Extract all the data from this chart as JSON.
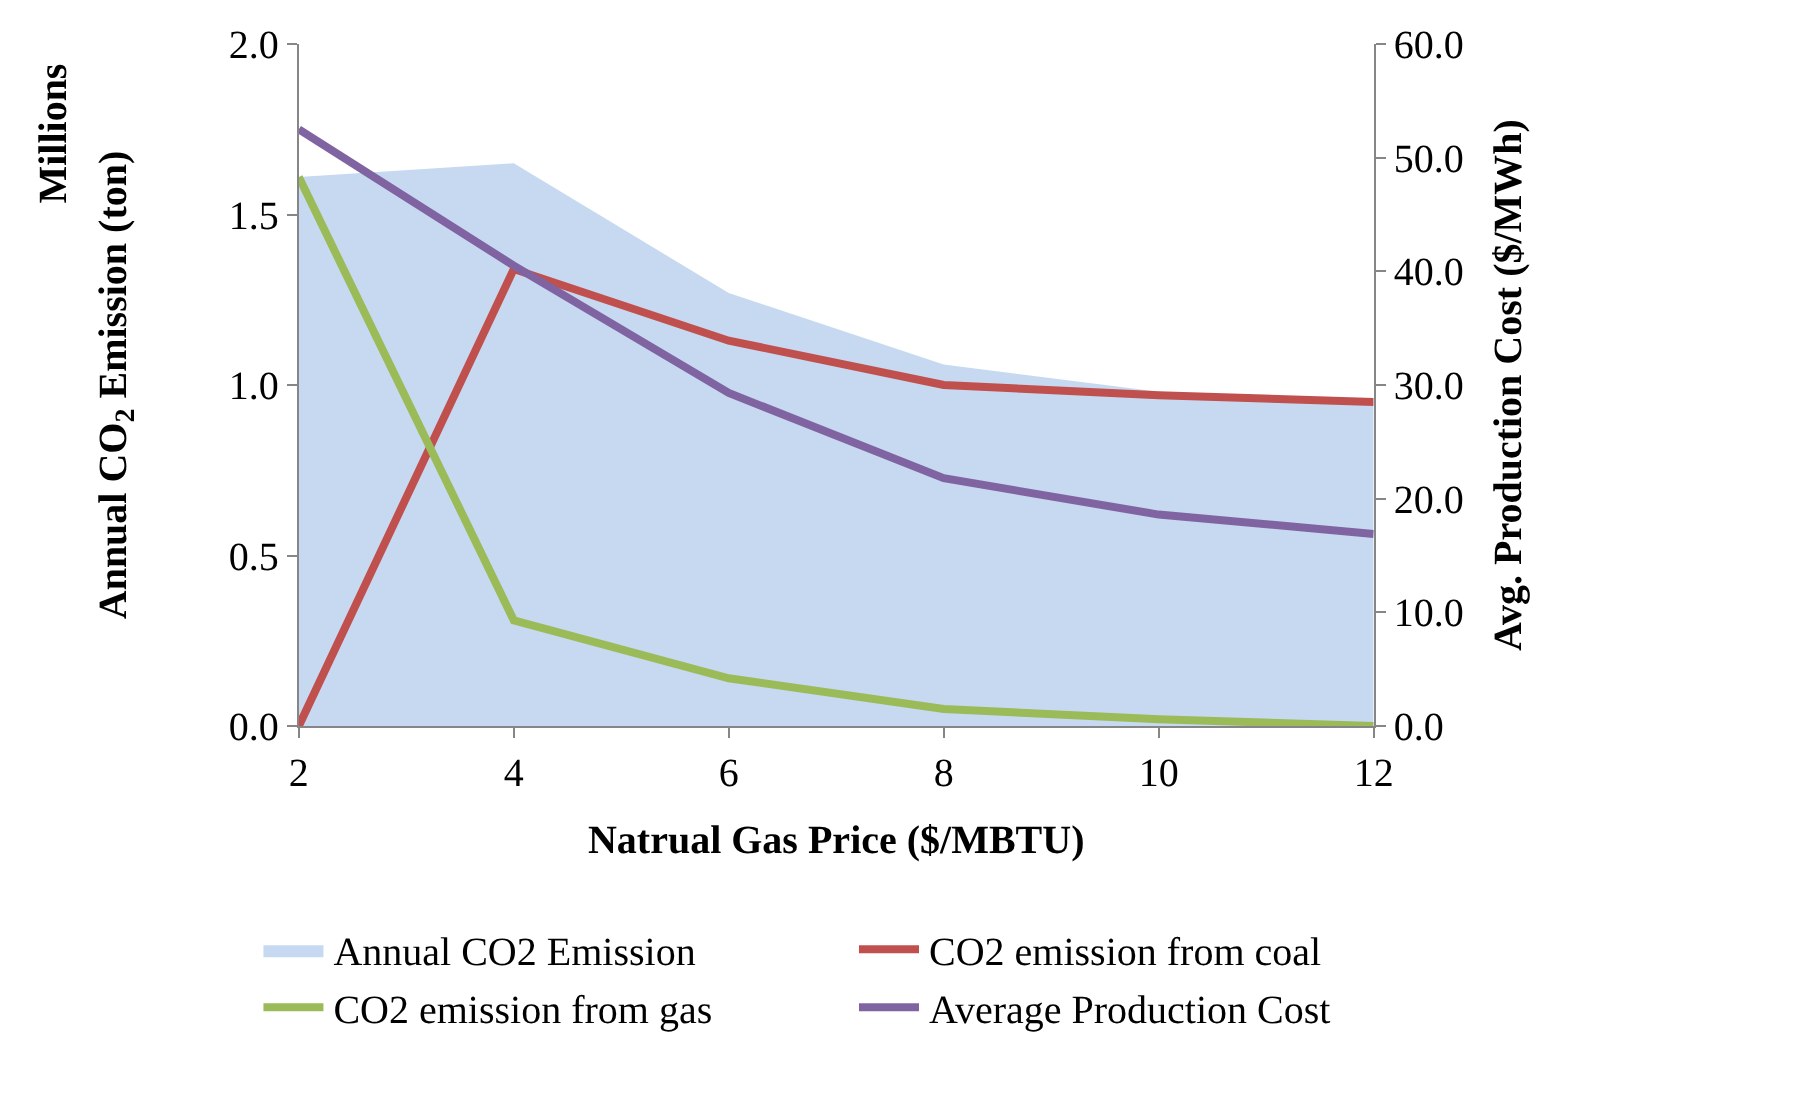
{
  "chart_data": {
    "type": "line",
    "xlabel": "Natrual Gas Price ($/MBTU)",
    "ylabel": "Annual CO$_{2}$ Emission (ton)",
    "y2label": "Avg. Production Cost ($/MWh)",
    "annotations": [
      "Millions"
    ],
    "x": [
      2,
      4,
      6,
      8,
      10,
      12
    ],
    "series": [
      {
        "name": "Annual CO2 Emission",
        "type": "area",
        "color": "#c6d9f1",
        "values": [
          1.61,
          1.65,
          1.27,
          1.06,
          0.98,
          0.95
        ]
      },
      {
        "name": "CO2 emission from coal",
        "color": "#c0504d",
        "values": [
          0,
          1.34,
          1.13,
          1.0,
          0.97,
          0.95
        ]
      },
      {
        "name": "CO2 emission from gas",
        "color": "#9bbb59",
        "values": [
          1.61,
          0.31,
          0.14,
          0.05,
          0.02,
          0.0
        ]
      },
      {
        "name": "Average Production Cost",
        "color": "#8064a2",
        "axis": "y2",
        "values": [
          52.5,
          40.5,
          29.3,
          21.8,
          18.6,
          16.9
        ]
      }
    ],
    "xlim": [
      2,
      12
    ],
    "xticks": [
      2,
      4,
      6,
      8,
      10,
      12
    ],
    "ylim": [
      0,
      2
    ],
    "yticks": [
      {
        "value": 0,
        "label": "0.0"
      },
      {
        "value": 0.5,
        "label": "0.5"
      },
      {
        "value": 1,
        "label": "1.0"
      },
      {
        "value": 1.5,
        "label": "1.5"
      },
      {
        "value": 2,
        "label": "2.0"
      }
    ],
    "y2lim": [
      0,
      60
    ],
    "y2ticks": [
      {
        "value": 0,
        "label": "0.0"
      },
      {
        "value": 10,
        "label": "10.0"
      },
      {
        "value": 20,
        "label": "20.0"
      },
      {
        "value": 30,
        "label": "30.0"
      },
      {
        "value": 40,
        "label": "40.0"
      },
      {
        "value": 50,
        "label": "50.0"
      },
      {
        "value": 60,
        "label": "60.0"
      }
    ],
    "legend": "bottom",
    "marker": "none",
    "line_style": "solid"
  }
}
